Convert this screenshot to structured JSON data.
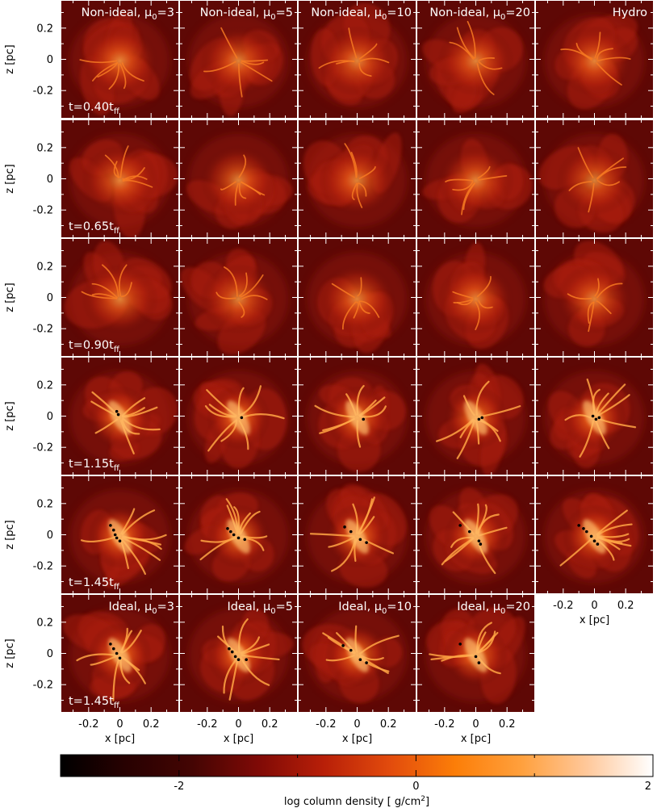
{
  "figure": {
    "rows": [
      {
        "time_label": {
          "prefix": "t=",
          "value": "0.40",
          "unit": "t",
          "sub": "ff"
        },
        "panels": [
          {
            "name": "Non-ideal, μ",
            "sub": "0",
            "value": "=3",
            "sinks": []
          },
          {
            "name": "Non-ideal, μ",
            "sub": "0",
            "value": "=5",
            "sinks": []
          },
          {
            "name": "Non-ideal, μ",
            "sub": "0",
            "value": "=10",
            "sinks": []
          },
          {
            "name": "Non-ideal, μ",
            "sub": "0",
            "value": "=20",
            "sinks": []
          },
          {
            "name": "Hydro",
            "sub": "",
            "value": "",
            "sinks": []
          }
        ]
      },
      {
        "time_label": {
          "prefix": "t=",
          "value": "0.65",
          "unit": "t",
          "sub": "ff"
        },
        "panels": [
          {
            "name": "",
            "sub": "",
            "value": "",
            "sinks": []
          },
          {
            "name": "",
            "sub": "",
            "value": "",
            "sinks": []
          },
          {
            "name": "",
            "sub": "",
            "value": "",
            "sinks": []
          },
          {
            "name": "",
            "sub": "",
            "value": "",
            "sinks": []
          },
          {
            "name": "",
            "sub": "",
            "value": "",
            "sinks": []
          }
        ]
      },
      {
        "time_label": {
          "prefix": "t=",
          "value": "0.90",
          "unit": "t",
          "sub": "ff"
        },
        "panels": [
          {
            "name": "",
            "sub": "",
            "value": "",
            "sinks": []
          },
          {
            "name": "",
            "sub": "",
            "value": "",
            "sinks": []
          },
          {
            "name": "",
            "sub": "",
            "value": "",
            "sinks": []
          },
          {
            "name": "",
            "sub": "",
            "value": "",
            "sinks": []
          },
          {
            "name": "",
            "sub": "",
            "value": "",
            "sinks": []
          }
        ]
      },
      {
        "time_label": {
          "prefix": "t=",
          "value": "1.15",
          "unit": "t",
          "sub": "ff"
        },
        "panels": [
          {
            "name": "",
            "sub": "",
            "value": "",
            "sinks": [
              [
                -0.02,
                0.03
              ],
              [
                -0.01,
                0.01
              ]
            ]
          },
          {
            "name": "",
            "sub": "",
            "value": "",
            "sinks": [
              [
                0.02,
                -0.01
              ]
            ]
          },
          {
            "name": "",
            "sub": "",
            "value": "",
            "sinks": [
              [
                0.04,
                -0.02
              ]
            ]
          },
          {
            "name": "",
            "sub": "",
            "value": "",
            "sinks": [
              [
                0.02,
                -0.02
              ],
              [
                0.04,
                -0.01
              ]
            ]
          },
          {
            "name": "",
            "sub": "",
            "value": "",
            "sinks": [
              [
                -0.01,
                0.0
              ],
              [
                0.01,
                -0.02
              ],
              [
                0.03,
                -0.01
              ]
            ]
          }
        ]
      },
      {
        "time_label": {
          "prefix": "t=",
          "value": "1.45",
          "unit": "t",
          "sub": "ff"
        },
        "panels": [
          {
            "name": "",
            "sub": "",
            "value": "",
            "sinks": [
              [
                -0.06,
                0.06
              ],
              [
                -0.04,
                0.03
              ],
              [
                -0.03,
                0.0
              ],
              [
                -0.02,
                -0.02
              ],
              [
                0.0,
                -0.04
              ]
            ]
          },
          {
            "name": "",
            "sub": "",
            "value": "",
            "sinks": [
              [
                -0.07,
                0.04
              ],
              [
                -0.05,
                0.02
              ],
              [
                -0.03,
                0.0
              ],
              [
                0.0,
                -0.02
              ],
              [
                0.04,
                -0.03
              ]
            ]
          },
          {
            "name": "",
            "sub": "",
            "value": "",
            "sinks": [
              [
                -0.08,
                0.05
              ],
              [
                -0.04,
                0.02
              ],
              [
                0.02,
                -0.03
              ],
              [
                0.06,
                -0.05
              ]
            ]
          },
          {
            "name": "",
            "sub": "",
            "value": "",
            "sinks": [
              [
                -0.1,
                0.06
              ],
              [
                -0.04,
                0.02
              ],
              [
                0.02,
                -0.04
              ],
              [
                0.03,
                -0.06
              ]
            ]
          },
          {
            "name": "",
            "sub": "",
            "value": "",
            "sinks": [
              [
                -0.1,
                0.06
              ],
              [
                -0.07,
                0.04
              ],
              [
                -0.05,
                0.02
              ],
              [
                -0.02,
                -0.01
              ],
              [
                0.0,
                -0.04
              ],
              [
                0.02,
                -0.06
              ]
            ]
          }
        ]
      },
      {
        "time_label": {
          "prefix": "t=",
          "value": "1.45",
          "unit": "t",
          "sub": "ff"
        },
        "panels": [
          {
            "name": "Ideal, μ",
            "sub": "0",
            "value": "=3",
            "sinks": [
              [
                -0.06,
                0.06
              ],
              [
                -0.04,
                0.03
              ],
              [
                -0.02,
                0.0
              ],
              [
                0.0,
                -0.03
              ]
            ]
          },
          {
            "name": "Ideal, μ",
            "sub": "0",
            "value": "=5",
            "sinks": [
              [
                -0.06,
                0.03
              ],
              [
                -0.04,
                0.01
              ],
              [
                -0.02,
                -0.02
              ],
              [
                0.0,
                -0.04
              ],
              [
                0.05,
                -0.04
              ]
            ]
          },
          {
            "name": "Ideal, μ",
            "sub": "0",
            "value": "=10",
            "sinks": [
              [
                -0.09,
                0.05
              ],
              [
                -0.04,
                0.02
              ],
              [
                0.02,
                -0.04
              ],
              [
                0.06,
                -0.06
              ]
            ]
          },
          {
            "name": "Ideal, μ",
            "sub": "0",
            "value": "=20",
            "sinks": [
              [
                -0.1,
                0.06
              ],
              [
                0.0,
                -0.02
              ],
              [
                0.02,
                -0.06
              ]
            ]
          }
        ]
      }
    ],
    "axes": {
      "y_label": "z [pc]",
      "x_label": "x [pc]",
      "y_ticks": [
        0.2,
        0.0,
        -0.2
      ],
      "x_ticks": [
        -0.2,
        0.0,
        0.2
      ],
      "y_tick_labels": [
        "0.2",
        "0",
        "-0.2"
      ],
      "x_tick_labels": [
        "-0.2",
        "0",
        "0.2"
      ],
      "range": [
        -0.38,
        0.38
      ]
    },
    "colorbar": {
      "label_prefix": "log column density [ g/cm",
      "label_sup": "2",
      "label_suffix": "]",
      "min": -3,
      "max": 2,
      "major_ticks": [
        -2,
        0,
        2
      ],
      "major_tick_labels": [
        "-2",
        "0",
        "2"
      ],
      "minor_ticks": [
        -3,
        -1,
        1
      ],
      "colormap": [
        "#000000",
        "#280101",
        "#440503",
        "#7f0a06",
        "#b81f08",
        "#e24b0d",
        "#fc7e08",
        "#ffa03d",
        "#ffc89b",
        "#ffffff"
      ]
    }
  }
}
